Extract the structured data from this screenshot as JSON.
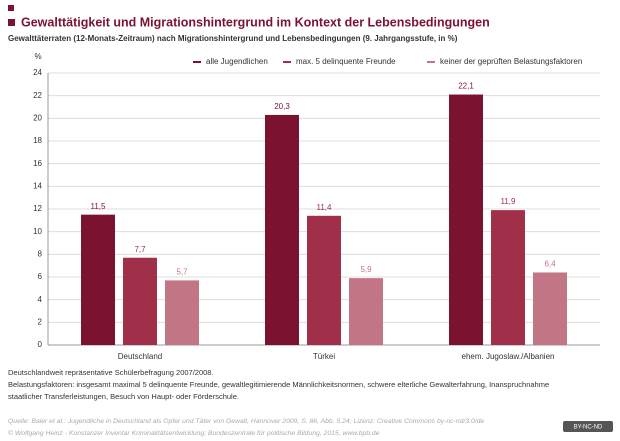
{
  "chart_data": {
    "type": "bar",
    "title": "Gewalttätigkeit und Migrationshintergrund im Kontext der Lebensbedingungen",
    "subtitle": "Gewalttäterraten (12-Monats-Zeitraum) nach Migrationshintergrund und Lebensbedingungen (9. Jahrgangsstufe, in %)",
    "y_unit": "%",
    "categories": [
      "Deutschland",
      "Türkei",
      "ehem. Jugoslaw./Albanien"
    ],
    "series": [
      {
        "name": "alle Jugendlichen",
        "color": "#7a1230",
        "values": [
          11.5,
          20.3,
          22.1
        ],
        "value_labels": [
          "11,5",
          "20,3",
          "22,1"
        ]
      },
      {
        "name": "max. 5 delinquente Freunde",
        "color": "#a0304a",
        "values": [
          7.7,
          11.4,
          11.9
        ],
        "value_labels": [
          "7,7",
          "11,4",
          "11,9"
        ]
      },
      {
        "name": "keiner der geprüften Belastungsfaktoren",
        "color": "#c27585",
        "values": [
          5.7,
          5.9,
          6.4
        ],
        "value_labels": [
          "5,7",
          "5,9",
          "6,4"
        ]
      }
    ],
    "ylim": [
      0,
      24
    ],
    "yticks": [
      0,
      2,
      4,
      6,
      8,
      10,
      12,
      14,
      16,
      18,
      20,
      22,
      24
    ],
    "grid": true,
    "legend": "top-right"
  },
  "notes": [
    "Deutschlandweit repräsentative Schülerbefragung 2007/2008.",
    "Belastungsfaktoren: insgesamt maximal 5 delinquente Freunde, gewaltlegitimierende Männlichkeitsnormen, schwere elterliche Gewalterfahrung, Inanspruchnahme",
    "staatlicher Transferleistungen, Besuch von Haupt- oder Förderschule."
  ],
  "source": [
    "Quelle: Baier et al.: Jugendliche in Deutschland als Opfer und Täter von Gewalt, Hannover 2009, S. 86, Abb. 5.24; Lizenz: Creative Commons by-nc-nd/3.0/de",
    "© Wolfgang Heinz - Konstanzer Inventar Kriminalitätsentwicklung; Bundeszentrale für politische Bildung, 2015, www.bpb.de"
  ],
  "license_badge": "BY-NC-ND"
}
